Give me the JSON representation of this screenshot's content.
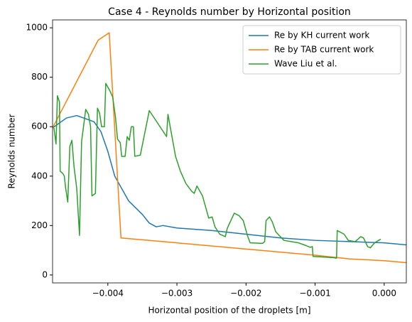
{
  "chart_data": {
    "type": "line",
    "title": "Case 4 - Reynolds number by Horizontal position",
    "x_label": "Horizontal position of the droplets [m]",
    "y_label": "Reynolds number",
    "xlim": [
      -0.0048,
      0.00032
    ],
    "ylim": [
      -32,
      1032
    ],
    "xticks": [
      {
        "value": -0.004,
        "label": "−0.004"
      },
      {
        "value": -0.003,
        "label": "−0.003"
      },
      {
        "value": -0.002,
        "label": "−0.002"
      },
      {
        "value": -0.001,
        "label": "−0.001"
      },
      {
        "value": 0,
        "label": "0.000"
      }
    ],
    "yticks": [
      0,
      200,
      400,
      600,
      800,
      1000
    ],
    "grid": false,
    "legend": "upper right",
    "series": [
      {
        "name": "Re by KH current work",
        "color": "#1f77b4",
        "x": [
          -0.0048,
          -0.0046,
          -0.00445,
          -0.0042,
          -0.0041,
          -0.004,
          -0.0039,
          -0.0038,
          -0.0037,
          -0.0035,
          -0.0034,
          -0.0033,
          -0.0032,
          -0.003,
          -0.0025,
          -0.002,
          -0.0015,
          -0.001,
          -0.0005,
          0,
          0.00032
        ],
        "values": [
          595,
          635,
          645,
          620,
          580,
          500,
          400,
          350,
          300,
          245,
          210,
          195,
          200,
          190,
          180,
          165,
          150,
          140,
          135,
          130,
          122
        ]
      },
      {
        "name": "Re by TAB current work",
        "color": "#ff7f0e",
        "x": [
          -0.0048,
          -0.00414,
          -0.00398,
          -0.00381,
          -0.003,
          -0.002,
          -0.001,
          -0.0005,
          0,
          0.00032
        ],
        "values": [
          595,
          950,
          980,
          150,
          130,
          105,
          80,
          65,
          58,
          50
        ]
      },
      {
        "name": "Wave Liu et al.",
        "color": "#2ca02c",
        "x": [
          -0.00478,
          -0.00475,
          -0.00473,
          -0.0047,
          -0.00469,
          -0.00465,
          -0.00463,
          -0.00461,
          -0.00458,
          -0.00455,
          -0.00452,
          -0.00449,
          -0.00445,
          -0.00441,
          -0.00438,
          -0.00432,
          -0.00428,
          -0.00425,
          -0.00423,
          -0.00418,
          -0.00415,
          -0.00412,
          -0.00409,
          -0.00405,
          -0.00403,
          -0.00397,
          -0.00393,
          -0.00389,
          -0.00386,
          -0.00382,
          -0.0038,
          -0.00375,
          -0.00372,
          -0.00369,
          -0.00366,
          -0.00363,
          -0.00361,
          -0.00353,
          -0.0034,
          -0.00315,
          -0.00313,
          -0.00302,
          -0.00295,
          -0.00287,
          -0.00279,
          -0.00275,
          -0.00271,
          -0.00263,
          -0.00254,
          -0.00249,
          -0.00245,
          -0.00238,
          -0.0023,
          -0.00227,
          -0.00217,
          -0.0021,
          -0.00204,
          -0.00198,
          -0.00194,
          -0.00176,
          -0.00173,
          -0.00171,
          -0.00166,
          -0.00162,
          -0.00157,
          -0.00152,
          -0.00145,
          -0.00124,
          -0.00114,
          -0.00107,
          -0.00104,
          -0.00103,
          -0.00073,
          -0.00069,
          -0.00068,
          -0.00058,
          -0.00052,
          -0.00042,
          -0.00034,
          -0.0003,
          -0.00024,
          -0.0002,
          -0.00014,
          -5e-05
        ],
        "values": [
          595,
          530,
          725,
          700,
          420,
          410,
          400,
          350,
          295,
          520,
          545,
          440,
          350,
          160,
          540,
          670,
          650,
          600,
          320,
          330,
          675,
          655,
          600,
          600,
          775,
          745,
          720,
          640,
          550,
          535,
          480,
          480,
          560,
          545,
          600,
          600,
          480,
          485,
          665,
          560,
          650,
          480,
          420,
          370,
          340,
          330,
          360,
          320,
          230,
          235,
          195,
          165,
          155,
          190,
          250,
          240,
          220,
          160,
          130,
          128,
          135,
          220,
          235,
          215,
          175,
          160,
          140,
          130,
          120,
          112,
          115,
          75,
          70,
          68,
          180,
          165,
          140,
          135,
          155,
          150,
          115,
          110,
          130,
          145
        ]
      }
    ]
  }
}
